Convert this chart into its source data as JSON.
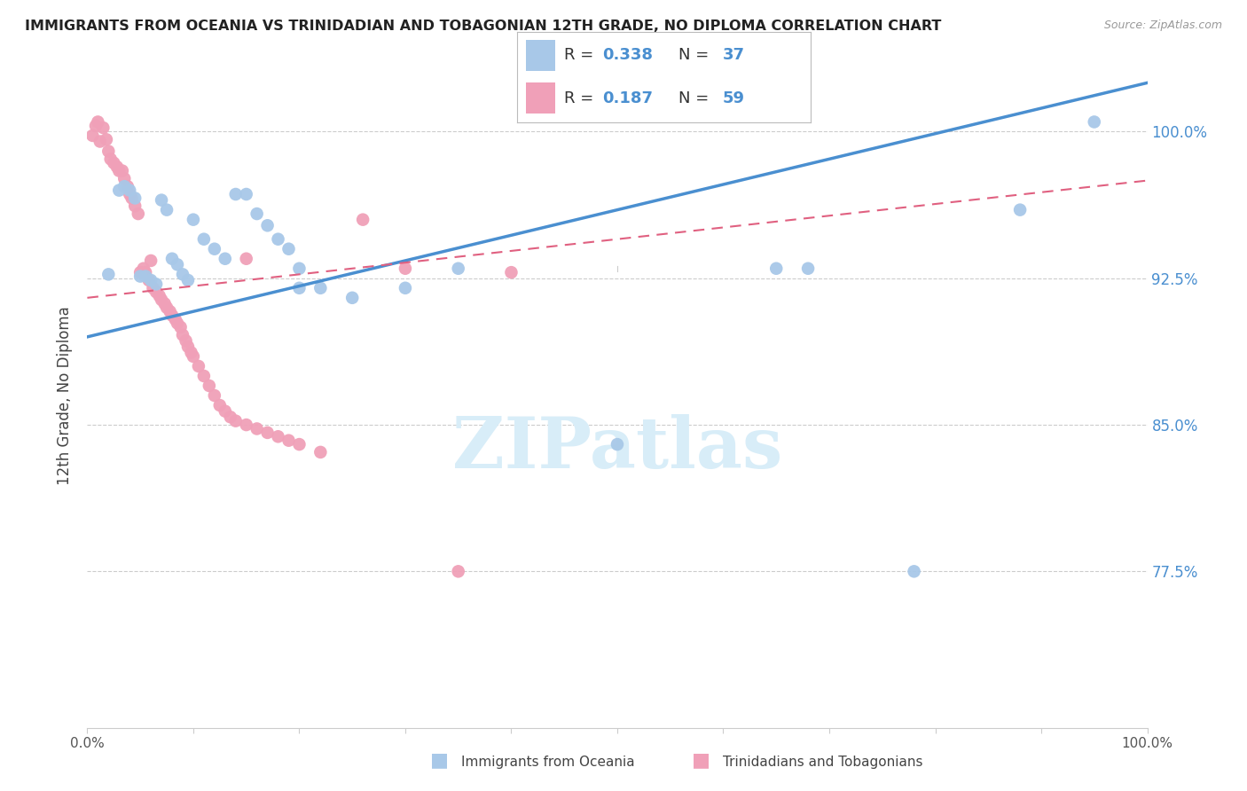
{
  "title": "IMMIGRANTS FROM OCEANIA VS TRINIDADIAN AND TOBAGONIAN 12TH GRADE, NO DIPLOMA CORRELATION CHART",
  "source": "Source: ZipAtlas.com",
  "ylabel": "12th Grade, No Diploma",
  "blue_color": "#a8c8e8",
  "pink_color": "#f0a0b8",
  "blue_line_color": "#4a8fd0",
  "pink_line_color": "#e06080",
  "label_color": "#4a8fd0",
  "grid_color": "#cccccc",
  "R_blue": "0.338",
  "N_blue": "37",
  "R_pink": "0.187",
  "N_pink": "59",
  "legend_label_blue": "Immigrants from Oceania",
  "legend_label_pink": "Trinidadians and Tobagonians",
  "watermark_text": "ZIPatlas",
  "watermark_color": "#d8edf8",
  "xlim": [
    0.0,
    1.0
  ],
  "ylim": [
    0.695,
    1.035
  ],
  "yticks": [
    0.775,
    0.85,
    0.925,
    1.0
  ],
  "ytick_labels": [
    "77.5%",
    "85.0%",
    "92.5%",
    "100.0%"
  ],
  "xtick_positions": [
    0.0,
    0.1,
    0.2,
    0.3,
    0.4,
    0.5,
    0.6,
    0.7,
    0.8,
    0.9,
    1.0
  ],
  "xtick_labels": [
    "0.0%",
    "",
    "",
    "",
    "",
    "",
    "",
    "",
    "",
    "",
    "100.0%"
  ],
  "blue_line": [
    0.0,
    0.895,
    1.0,
    1.025
  ],
  "pink_line": [
    0.0,
    0.915,
    1.0,
    0.975
  ],
  "blue_scatter_x": [
    0.02,
    0.03,
    0.035,
    0.04,
    0.045,
    0.05,
    0.055,
    0.06,
    0.065,
    0.07,
    0.075,
    0.08,
    0.085,
    0.09,
    0.095,
    0.1,
    0.11,
    0.12,
    0.13,
    0.14,
    0.15,
    0.16,
    0.17,
    0.18,
    0.19,
    0.2,
    0.22,
    0.25,
    0.3,
    0.35,
    0.5,
    0.65,
    0.78,
    0.88,
    0.95,
    0.68,
    0.2
  ],
  "blue_scatter_y": [
    0.927,
    0.97,
    0.972,
    0.97,
    0.966,
    0.926,
    0.926,
    0.924,
    0.922,
    0.965,
    0.96,
    0.935,
    0.932,
    0.927,
    0.924,
    0.955,
    0.945,
    0.94,
    0.935,
    0.968,
    0.968,
    0.958,
    0.952,
    0.945,
    0.94,
    0.93,
    0.92,
    0.915,
    0.92,
    0.93,
    0.84,
    0.93,
    0.775,
    0.96,
    1.005,
    0.93,
    0.92
  ],
  "pink_scatter_x": [
    0.005,
    0.008,
    0.01,
    0.012,
    0.015,
    0.018,
    0.02,
    0.022,
    0.025,
    0.028,
    0.03,
    0.033,
    0.035,
    0.038,
    0.04,
    0.042,
    0.045,
    0.048,
    0.05,
    0.053,
    0.055,
    0.058,
    0.06,
    0.062,
    0.065,
    0.068,
    0.07,
    0.073,
    0.075,
    0.078,
    0.08,
    0.083,
    0.085,
    0.088,
    0.09,
    0.093,
    0.095,
    0.098,
    0.1,
    0.105,
    0.11,
    0.115,
    0.12,
    0.125,
    0.13,
    0.135,
    0.14,
    0.15,
    0.16,
    0.17,
    0.18,
    0.19,
    0.2,
    0.22,
    0.26,
    0.3,
    0.35,
    0.4,
    0.15
  ],
  "pink_scatter_y": [
    0.998,
    1.003,
    1.005,
    0.995,
    1.002,
    0.996,
    0.99,
    0.986,
    0.984,
    0.982,
    0.98,
    0.98,
    0.976,
    0.972,
    0.968,
    0.966,
    0.962,
    0.958,
    0.928,
    0.93,
    0.928,
    0.924,
    0.934,
    0.92,
    0.918,
    0.916,
    0.914,
    0.912,
    0.91,
    0.908,
    0.906,
    0.904,
    0.902,
    0.9,
    0.896,
    0.893,
    0.89,
    0.887,
    0.885,
    0.88,
    0.875,
    0.87,
    0.865,
    0.86,
    0.857,
    0.854,
    0.852,
    0.85,
    0.848,
    0.846,
    0.844,
    0.842,
    0.84,
    0.836,
    0.955,
    0.93,
    0.775,
    0.928,
    0.935
  ]
}
